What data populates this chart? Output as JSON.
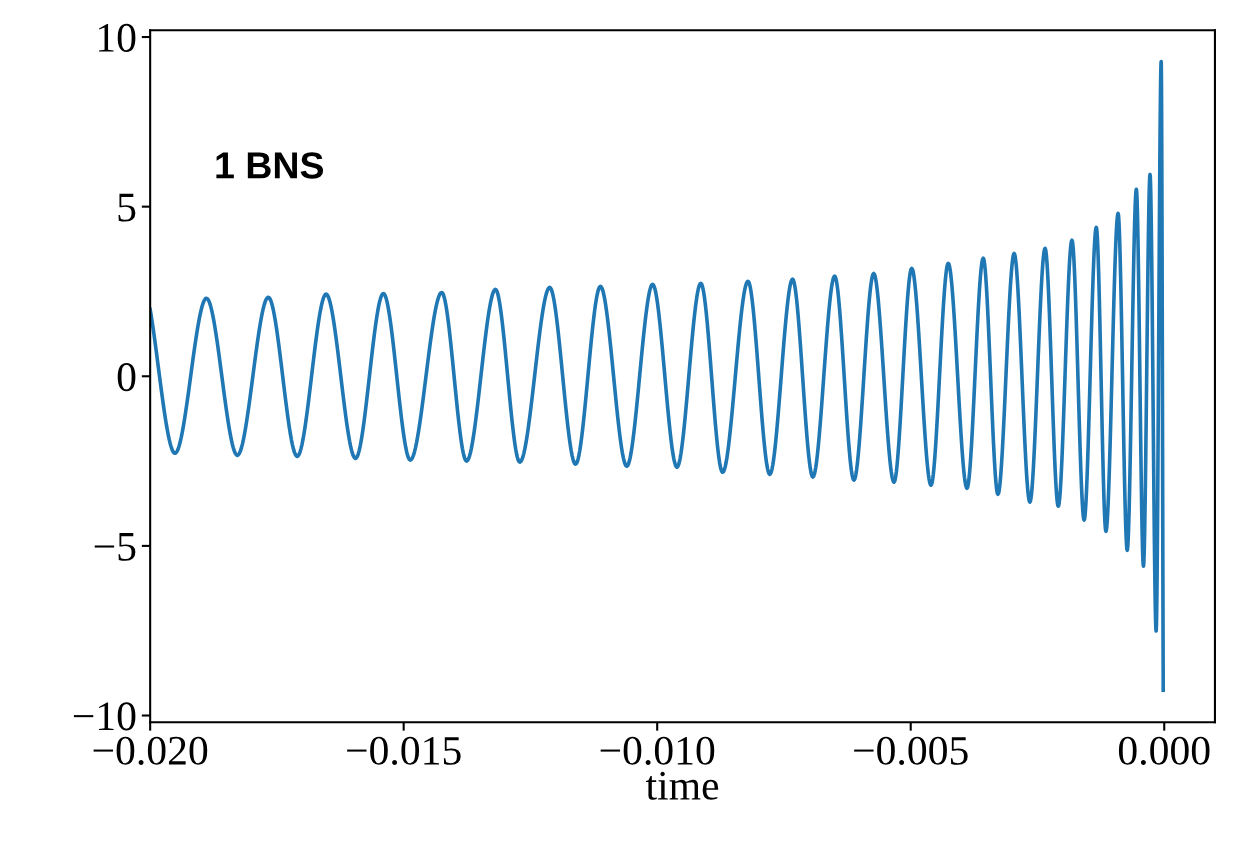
{
  "chart_data": {
    "type": "line",
    "xlabel": "time",
    "annotations": [
      "1 BNS"
    ],
    "grid": false,
    "legend": false,
    "marker": "none",
    "line_style": "solid",
    "xlim": [
      -0.02,
      0.001
    ],
    "ylim": [
      -10.2,
      10.2
    ],
    "xticks": [
      {
        "value": -0.02,
        "label": "−0.020"
      },
      {
        "value": -0.015,
        "label": "−0.015"
      },
      {
        "value": -0.01,
        "label": "−0.010"
      },
      {
        "value": -0.005,
        "label": "−0.005"
      },
      {
        "value": 0,
        "label": "0.000"
      }
    ],
    "yticks": [
      {
        "value": -10,
        "label": "−10"
      },
      {
        "value": -5,
        "label": "−5"
      },
      0,
      5,
      10
    ],
    "series": [
      {
        "color": "#1f77b4",
        "x": [
          -0.02,
          -0.01951,
          -0.01889,
          -0.01828,
          -0.01767,
          -0.0171,
          -0.01653,
          -0.01595,
          -0.0154,
          -0.01487,
          -0.01425,
          -0.01376,
          -0.01319,
          -0.01271,
          -0.01212,
          -0.01161,
          -0.01112,
          -0.0106,
          -0.01009,
          -0.00961,
          -0.00914,
          -0.00871,
          -0.00821,
          -0.00778,
          -0.00733,
          -0.00693,
          -0.0065,
          -0.00612,
          -0.00573,
          -0.00533,
          -0.00498,
          -0.0046,
          -0.00426,
          -0.00389,
          -0.00357,
          -0.00328,
          -0.00296,
          -0.00265,
          -0.00235,
          -0.00209,
          -0.00182,
          -0.00158,
          -0.00134,
          -0.00115,
          -0.00091,
          -0.00073,
          -0.00055,
          -0.00041,
          -0.00028,
          -0.00016,
          -6e-05,
          -2e-05
        ],
        "values": [
          1.97,
          -2.27,
          2.3,
          -2.33,
          2.33,
          -2.36,
          2.42,
          -2.42,
          2.44,
          -2.47,
          2.47,
          -2.5,
          2.56,
          -2.53,
          2.62,
          -2.59,
          2.65,
          -2.65,
          2.71,
          -2.68,
          2.74,
          -2.83,
          2.8,
          -2.89,
          2.86,
          -2.97,
          2.95,
          -3.06,
          3.03,
          -3.12,
          3.18,
          -3.21,
          3.33,
          -3.3,
          3.48,
          -3.48,
          3.62,
          -3.71,
          3.77,
          -3.83,
          4.01,
          -4.24,
          4.39,
          -4.57,
          4.8,
          -5.13,
          5.51,
          -5.6,
          5.95,
          -7.51,
          9.28,
          -9.25
        ]
      }
    ]
  }
}
